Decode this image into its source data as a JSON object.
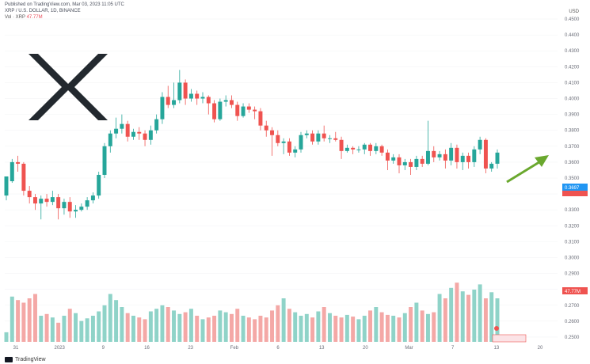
{
  "header": {
    "line1": "Published on TradingView.com, Mar 03, 2023 11:05 UTC",
    "line2": "XRP / U.S. DOLLAR, 1D, BINANCE",
    "volume_label": "Vol · XRP",
    "volume_value": "47.77M"
  },
  "currency": "USD",
  "footer": {
    "brand": "TradingView"
  },
  "colors": {
    "up": "#26a69a",
    "down": "#ef5350",
    "vol_up": "#8fd3c8",
    "vol_down": "#f4a8a6",
    "arrow": "#6aa82e",
    "logo": "#23292f"
  },
  "icons": {
    "logo": "xrp-logo-icon",
    "arrow": "trend-arrow-icon"
  },
  "chart_data": {
    "type": "candlestick",
    "x_ticks": [
      "31",
      "2023",
      "9",
      "16",
      "23",
      "Feb",
      "6",
      "13",
      "20",
      "Mar",
      "7",
      "13",
      "20"
    ],
    "y_ticks": [
      "0.4500",
      "0.4400",
      "0.4300",
      "0.4200",
      "0.4100",
      "0.4000",
      "0.3900",
      "0.3800",
      "0.3700",
      "0.3600",
      "0.3500",
      "0.3400",
      "0.3300",
      "0.3200",
      "0.3100",
      "0.3000",
      "0.2900",
      "0.2800",
      "0.2700",
      "0.2600",
      "0.2500"
    ],
    "ylim": [
      0.245,
      0.455
    ],
    "price_label": "0.3697",
    "volume_tag": "47.77M",
    "candles": [
      [
        0.339,
        0.351,
        0.348,
        0.336
      ],
      [
        0.348,
        0.36,
        0.362,
        0.347
      ],
      [
        0.36,
        0.359,
        0.364,
        0.354
      ],
      [
        0.359,
        0.342,
        0.36,
        0.339
      ],
      [
        0.342,
        0.338,
        0.345,
        0.334
      ],
      [
        0.338,
        0.334,
        0.34,
        0.33
      ],
      [
        0.334,
        0.337,
        0.339,
        0.324
      ],
      [
        0.337,
        0.335,
        0.34,
        0.332
      ],
      [
        0.335,
        0.338,
        0.342,
        0.333
      ],
      [
        0.338,
        0.331,
        0.34,
        0.324
      ],
      [
        0.331,
        0.335,
        0.337,
        0.327
      ],
      [
        0.335,
        0.329,
        0.338,
        0.325
      ],
      [
        0.329,
        0.33,
        0.333,
        0.325
      ],
      [
        0.33,
        0.332,
        0.334,
        0.329
      ],
      [
        0.332,
        0.336,
        0.338,
        0.33
      ],
      [
        0.336,
        0.339,
        0.341,
        0.334
      ],
      [
        0.339,
        0.352,
        0.354,
        0.337
      ],
      [
        0.352,
        0.37,
        0.372,
        0.35
      ],
      [
        0.37,
        0.378,
        0.38,
        0.366
      ],
      [
        0.378,
        0.381,
        0.388,
        0.375
      ],
      [
        0.381,
        0.384,
        0.39,
        0.378
      ],
      [
        0.384,
        0.376,
        0.386,
        0.373
      ],
      [
        0.376,
        0.379,
        0.381,
        0.374
      ],
      [
        0.379,
        0.378,
        0.382,
        0.374
      ],
      [
        0.378,
        0.374,
        0.38,
        0.37
      ],
      [
        0.374,
        0.38,
        0.383,
        0.371
      ],
      [
        0.38,
        0.387,
        0.39,
        0.378
      ],
      [
        0.387,
        0.401,
        0.404,
        0.384
      ],
      [
        0.401,
        0.396,
        0.408,
        0.394
      ],
      [
        0.396,
        0.399,
        0.41,
        0.394
      ],
      [
        0.399,
        0.41,
        0.418,
        0.397
      ],
      [
        0.41,
        0.4,
        0.412,
        0.396
      ],
      [
        0.4,
        0.403,
        0.406,
        0.398
      ],
      [
        0.403,
        0.4,
        0.405,
        0.396
      ],
      [
        0.4,
        0.401,
        0.404,
        0.397
      ],
      [
        0.401,
        0.397,
        0.402,
        0.39
      ],
      [
        0.397,
        0.387,
        0.399,
        0.385
      ],
      [
        0.387,
        0.398,
        0.4,
        0.386
      ],
      [
        0.398,
        0.399,
        0.402,
        0.395
      ],
      [
        0.399,
        0.396,
        0.402,
        0.394
      ],
      [
        0.396,
        0.389,
        0.398,
        0.386
      ],
      [
        0.389,
        0.395,
        0.397,
        0.388
      ],
      [
        0.395,
        0.393,
        0.397,
        0.391
      ],
      [
        0.393,
        0.392,
        0.395,
        0.387
      ],
      [
        0.392,
        0.383,
        0.394,
        0.38
      ],
      [
        0.383,
        0.38,
        0.386,
        0.376
      ],
      [
        0.38,
        0.377,
        0.382,
        0.364
      ],
      [
        0.377,
        0.372,
        0.38,
        0.37
      ],
      [
        0.372,
        0.373,
        0.375,
        0.365
      ],
      [
        0.373,
        0.366,
        0.375,
        0.364
      ],
      [
        0.366,
        0.368,
        0.37,
        0.363
      ],
      [
        0.368,
        0.377,
        0.379,
        0.366
      ],
      [
        0.377,
        0.378,
        0.38,
        0.375
      ],
      [
        0.378,
        0.373,
        0.38,
        0.371
      ],
      [
        0.373,
        0.378,
        0.38,
        0.371
      ],
      [
        0.378,
        0.375,
        0.383,
        0.373
      ],
      [
        0.375,
        0.375,
        0.377,
        0.372
      ],
      [
        0.375,
        0.374,
        0.379,
        0.373
      ],
      [
        0.374,
        0.367,
        0.376,
        0.362
      ],
      [
        0.367,
        0.369,
        0.371,
        0.366
      ],
      [
        0.369,
        0.368,
        0.37,
        0.365
      ],
      [
        0.368,
        0.368,
        0.37,
        0.366
      ],
      [
        0.368,
        0.371,
        0.372,
        0.365
      ],
      [
        0.371,
        0.367,
        0.372,
        0.364
      ],
      [
        0.367,
        0.37,
        0.372,
        0.365
      ],
      [
        0.37,
        0.366,
        0.371,
        0.364
      ],
      [
        0.366,
        0.361,
        0.368,
        0.355
      ],
      [
        0.361,
        0.363,
        0.365,
        0.359
      ],
      [
        0.363,
        0.358,
        0.365,
        0.353
      ],
      [
        0.358,
        0.36,
        0.362,
        0.355
      ],
      [
        0.36,
        0.357,
        0.362,
        0.352
      ],
      [
        0.357,
        0.362,
        0.364,
        0.355
      ],
      [
        0.362,
        0.359,
        0.364,
        0.357
      ],
      [
        0.359,
        0.367,
        0.386,
        0.358
      ],
      [
        0.367,
        0.363,
        0.37,
        0.36
      ],
      [
        0.363,
        0.365,
        0.367,
        0.361
      ],
      [
        0.365,
        0.361,
        0.368,
        0.356
      ],
      [
        0.361,
        0.369,
        0.372,
        0.358
      ],
      [
        0.369,
        0.36,
        0.371,
        0.356
      ],
      [
        0.36,
        0.364,
        0.366,
        0.355
      ],
      [
        0.364,
        0.36,
        0.366,
        0.356
      ],
      [
        0.36,
        0.368,
        0.37,
        0.357
      ],
      [
        0.368,
        0.374,
        0.376,
        0.365
      ],
      [
        0.374,
        0.356,
        0.375,
        0.353
      ],
      [
        0.356,
        0.359,
        0.36,
        0.354
      ],
      [
        0.359,
        0.366,
        0.368,
        0.356
      ]
    ],
    "volumes": [
      0.11,
      0.52,
      0.48,
      0.45,
      0.5,
      0.55,
      0.3,
      0.32,
      0.28,
      0.22,
      0.3,
      0.38,
      0.33,
      0.24,
      0.27,
      0.3,
      0.35,
      0.42,
      0.55,
      0.48,
      0.4,
      0.33,
      0.3,
      0.28,
      0.26,
      0.35,
      0.38,
      0.42,
      0.4,
      0.36,
      0.32,
      0.34,
      0.38,
      0.3,
      0.26,
      0.28,
      0.3,
      0.36,
      0.34,
      0.32,
      0.38,
      0.3,
      0.28,
      0.26,
      0.3,
      0.28,
      0.36,
      0.42,
      0.5,
      0.38,
      0.34,
      0.3,
      0.32,
      0.28,
      0.35,
      0.4,
      0.33,
      0.3,
      0.28,
      0.31,
      0.29,
      0.26,
      0.3,
      0.36,
      0.4,
      0.34,
      0.31,
      0.3,
      0.28,
      0.33,
      0.4,
      0.45,
      0.36,
      0.32,
      0.34,
      0.55,
      0.5,
      0.62,
      0.68,
      0.58,
      0.54,
      0.6,
      0.66,
      0.5,
      0.57,
      0.5
    ]
  }
}
